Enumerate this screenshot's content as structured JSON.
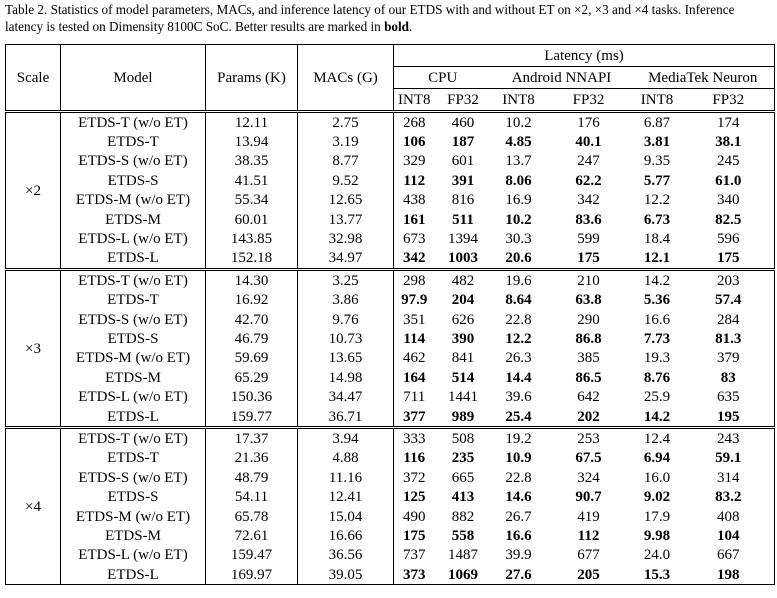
{
  "caption": [
    "Table 2. Statistics of model parameters, MACs, and inference latency of our ETDS with and without ET on ×2, ×3 and ×4 tasks. Inference latency is tested on Dimensity 8100C SoC. Better results are marked in ",
    "bold",
    "."
  ],
  "header": {
    "scale": "Scale",
    "model": "Model",
    "params": "Params (K)",
    "macs": "MACs (G)",
    "latency": "Latency (ms)",
    "platforms": [
      "CPU",
      "Android NNAPI",
      "MediaTek Neuron"
    ],
    "precisions": [
      "INT8",
      "FP32",
      "INT8",
      "FP32",
      "INT8",
      "FP32"
    ]
  },
  "groups": [
    {
      "scale": "×2",
      "rows": [
        {
          "model": "ETDS-T (w/o ET)",
          "params": "12.11",
          "macs": "2.75",
          "latency": [
            "268",
            "460",
            "10.2",
            "176",
            "6.87",
            "174"
          ],
          "bold": false
        },
        {
          "model": "ETDS-T",
          "params": "13.94",
          "macs": "3.19",
          "latency": [
            "106",
            "187",
            "4.85",
            "40.1",
            "3.81",
            "38.1"
          ],
          "bold": true
        },
        {
          "model": "ETDS-S (w/o ET)",
          "params": "38.35",
          "macs": "8.77",
          "latency": [
            "329",
            "601",
            "13.7",
            "247",
            "9.35",
            "245"
          ],
          "bold": false
        },
        {
          "model": "ETDS-S",
          "params": "41.51",
          "macs": "9.52",
          "latency": [
            "112",
            "391",
            "8.06",
            "62.2",
            "5.77",
            "61.0"
          ],
          "bold": true
        },
        {
          "model": "ETDS-M (w/o ET)",
          "params": "55.34",
          "macs": "12.65",
          "latency": [
            "438",
            "816",
            "16.9",
            "342",
            "12.2",
            "340"
          ],
          "bold": false
        },
        {
          "model": "ETDS-M",
          "params": "60.01",
          "macs": "13.77",
          "latency": [
            "161",
            "511",
            "10.2",
            "83.6",
            "6.73",
            "82.5"
          ],
          "bold": true
        },
        {
          "model": "ETDS-L (w/o ET)",
          "params": "143.85",
          "macs": "32.98",
          "latency": [
            "673",
            "1394",
            "30.3",
            "599",
            "18.4",
            "596"
          ],
          "bold": false
        },
        {
          "model": "ETDS-L",
          "params": "152.18",
          "macs": "34.97",
          "latency": [
            "342",
            "1003",
            "20.6",
            "175",
            "12.1",
            "175"
          ],
          "bold": true
        }
      ]
    },
    {
      "scale": "×3",
      "rows": [
        {
          "model": "ETDS-T (w/o ET)",
          "params": "14.30",
          "macs": "3.25",
          "latency": [
            "298",
            "482",
            "19.6",
            "210",
            "14.2",
            "203"
          ],
          "bold": false
        },
        {
          "model": "ETDS-T",
          "params": "16.92",
          "macs": "3.86",
          "latency": [
            "97.9",
            "204",
            "8.64",
            "63.8",
            "5.36",
            "57.4"
          ],
          "bold": true
        },
        {
          "model": "ETDS-S (w/o ET)",
          "params": "42.70",
          "macs": "9.76",
          "latency": [
            "351",
            "626",
            "22.8",
            "290",
            "16.6",
            "284"
          ],
          "bold": false
        },
        {
          "model": "ETDS-S",
          "params": "46.79",
          "macs": "10.73",
          "latency": [
            "114",
            "390",
            "12.2",
            "86.8",
            "7.73",
            "81.3"
          ],
          "bold": true
        },
        {
          "model": "ETDS-M (w/o ET)",
          "params": "59.69",
          "macs": "13.65",
          "latency": [
            "462",
            "841",
            "26.3",
            "385",
            "19.3",
            "379"
          ],
          "bold": false
        },
        {
          "model": "ETDS-M",
          "params": "65.29",
          "macs": "14.98",
          "latency": [
            "164",
            "514",
            "14.4",
            "86.5",
            "8.76",
            "83"
          ],
          "bold": true
        },
        {
          "model": "ETDS-L (w/o ET)",
          "params": "150.36",
          "macs": "34.47",
          "latency": [
            "711",
            "1441",
            "39.6",
            "642",
            "25.9",
            "635"
          ],
          "bold": false
        },
        {
          "model": "ETDS-L",
          "params": "159.77",
          "macs": "36.71",
          "latency": [
            "377",
            "989",
            "25.4",
            "202",
            "14.2",
            "195"
          ],
          "bold": true
        }
      ]
    },
    {
      "scale": "×4",
      "rows": [
        {
          "model": "ETDS-T (w/o ET)",
          "params": "17.37",
          "macs": "3.94",
          "latency": [
            "333",
            "508",
            "19.2",
            "253",
            "12.4",
            "243"
          ],
          "bold": false
        },
        {
          "model": "ETDS-T",
          "params": "21.36",
          "macs": "4.88",
          "latency": [
            "116",
            "235",
            "10.9",
            "67.5",
            "6.94",
            "59.1"
          ],
          "bold": true
        },
        {
          "model": "ETDS-S (w/o ET)",
          "params": "48.79",
          "macs": "11.16",
          "latency": [
            "372",
            "665",
            "22.8",
            "324",
            "16.0",
            "314"
          ],
          "bold": false
        },
        {
          "model": "ETDS-S",
          "params": "54.11",
          "macs": "12.41",
          "latency": [
            "125",
            "413",
            "14.6",
            "90.7",
            "9.02",
            "83.2"
          ],
          "bold": true
        },
        {
          "model": "ETDS-M (w/o ET)",
          "params": "65.78",
          "macs": "15.04",
          "latency": [
            "490",
            "882",
            "26.7",
            "419",
            "17.9",
            "408"
          ],
          "bold": false
        },
        {
          "model": "ETDS-M",
          "params": "72.61",
          "macs": "16.66",
          "latency": [
            "175",
            "558",
            "16.6",
            "112",
            "9.98",
            "104"
          ],
          "bold": true
        },
        {
          "model": "ETDS-L (w/o ET)",
          "params": "159.47",
          "macs": "36.56",
          "latency": [
            "737",
            "1487",
            "39.9",
            "677",
            "24.0",
            "667"
          ],
          "bold": false
        },
        {
          "model": "ETDS-L",
          "params": "169.97",
          "macs": "39.05",
          "latency": [
            "373",
            "1069",
            "27.6",
            "205",
            "15.3",
            "198"
          ],
          "bold": true
        }
      ]
    }
  ]
}
